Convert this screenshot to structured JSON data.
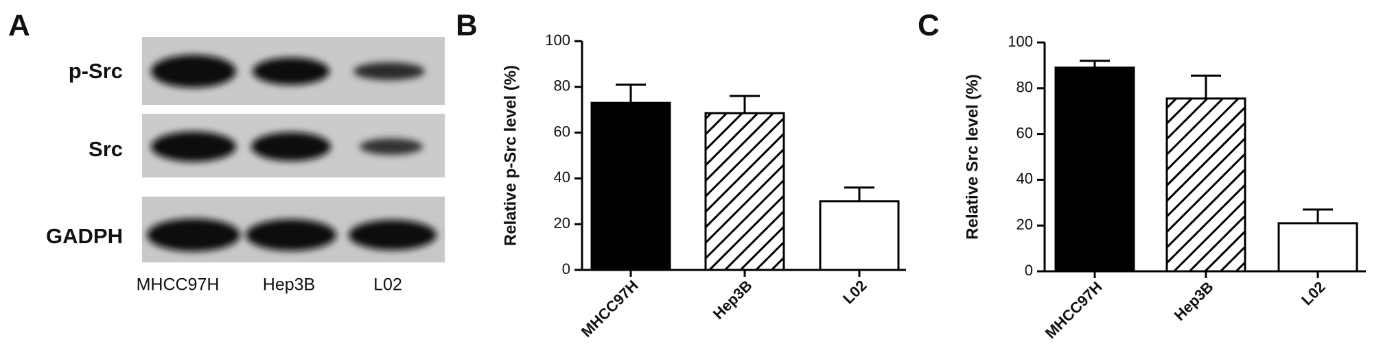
{
  "blot": {
    "panel_label": "A",
    "rows": [
      "p-Src",
      "Src",
      "GADPH"
    ],
    "lanes": [
      "MHCC97H",
      "Hep3B",
      "L02"
    ]
  },
  "chart_data": [
    {
      "type": "bar",
      "panel_label": "B",
      "ylabel": "Relative p-Src level (%)",
      "categories": [
        "MHCC97H",
        "Hep3B",
        "L02"
      ],
      "values": [
        73,
        68.5,
        30
      ],
      "errors": [
        8,
        7.5,
        6
      ],
      "bar_styles": [
        "solid",
        "hatched",
        "open"
      ],
      "color": "#000000",
      "ylim": [
        0,
        100
      ],
      "yticks": [
        0,
        20,
        40,
        60,
        80,
        100
      ]
    },
    {
      "type": "bar",
      "panel_label": "C",
      "ylabel": "Relative Src level (%)",
      "categories": [
        "MHCC97H",
        "Hep3B",
        "L02"
      ],
      "values": [
        89,
        75.5,
        21
      ],
      "errors": [
        3,
        10,
        6
      ],
      "bar_styles": [
        "solid",
        "hatched",
        "open"
      ],
      "color": "#000000",
      "ylim": [
        0,
        100
      ],
      "yticks": [
        0,
        20,
        40,
        60,
        80,
        100
      ]
    }
  ]
}
